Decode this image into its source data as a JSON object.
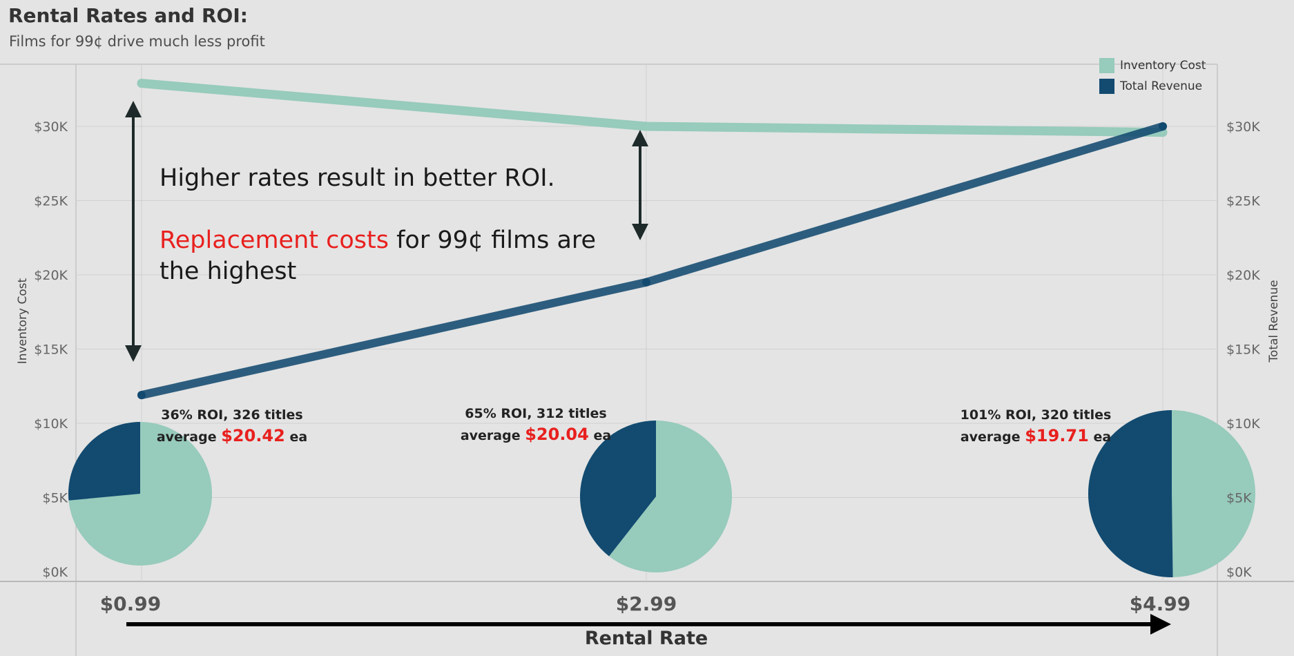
{
  "header": {
    "title": "Rental Rates and ROI:",
    "subtitle": "Films for 99¢ drive much less profit"
  },
  "annotation": {
    "line1": "Higher rates result in better ROI.",
    "highlight": "Replacement costs",
    "line2_rest": " for 99¢ films are",
    "line3": "the highest"
  },
  "colors": {
    "inventory_cost": "#97cbbc",
    "total_revenue": "#134a70",
    "highlight_red": "#e8201e"
  },
  "pies": [
    {
      "rate": "$0.99",
      "roi_text": "36% ROI, 326 titles",
      "avg_prefix": "average ",
      "avg_value": "$20.42",
      "avg_suffix": " ea",
      "revenue_share": 0.265
    },
    {
      "rate": "$2.99",
      "roi_text": "65% ROI, 312 titles",
      "avg_prefix": "average ",
      "avg_value": "$20.04",
      "avg_suffix": " ea",
      "revenue_share": 0.394
    },
    {
      "rate": "$4.99",
      "roi_text": "101% ROI, 320 titles",
      "avg_prefix": "average ",
      "avg_value": "$19.71",
      "avg_suffix": " ea",
      "revenue_share": 0.502
    }
  ],
  "chart_data": {
    "type": "line",
    "x_categories": [
      "$0.99",
      "$2.99",
      "$4.99"
    ],
    "xlabel": "Rental Rate",
    "ylabel_left": "Inventory Cost",
    "ylabel_right": "Total Revenue",
    "ylim": [
      0,
      35000
    ],
    "yticks": [
      0,
      5000,
      10000,
      15000,
      20000,
      25000,
      30000
    ],
    "ytick_labels": [
      "$0K",
      "$5K",
      "$10K",
      "$15K",
      "$20K",
      "$25K",
      "$30K"
    ],
    "series": [
      {
        "name": "Inventory Cost",
        "values": [
          32900,
          30000,
          29600
        ]
      },
      {
        "name": "Total Revenue",
        "values": [
          11900,
          19500,
          30000
        ]
      }
    ],
    "legend_position": "top-right",
    "grid": true
  }
}
